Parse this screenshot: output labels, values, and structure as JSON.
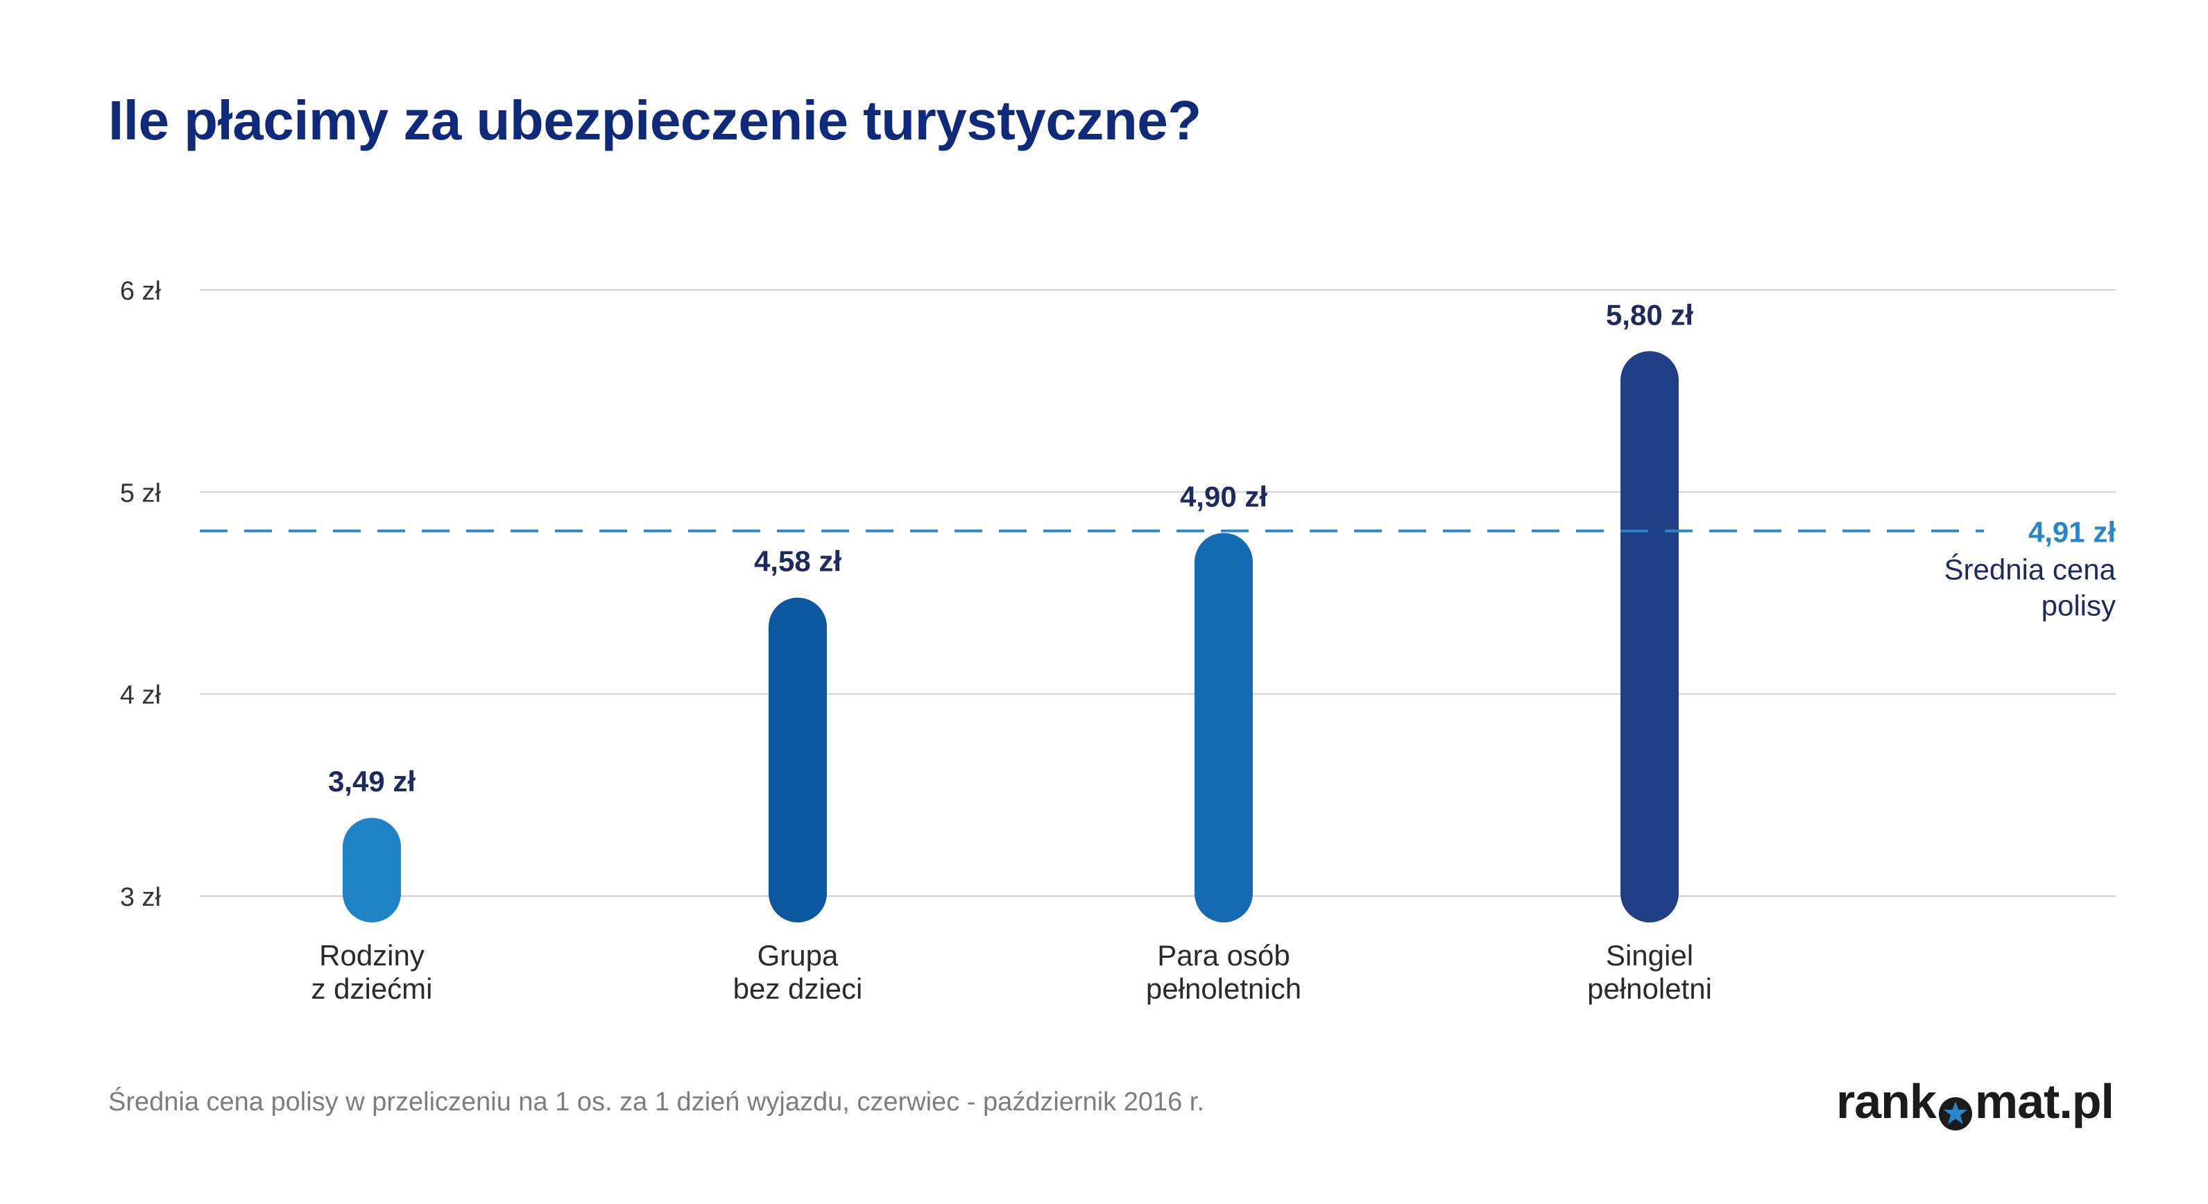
{
  "title": "Ile płacimy za ubezpieczenie turystyczne?",
  "footnote": "Średnia cena polisy w przeliczeniu na 1 os. za 1 dzień wyjazdu, czerwiec - październik 2016 r.",
  "logo": {
    "left": "rank",
    "right": "mat.pl",
    "icon": "star-circle-icon"
  },
  "chart_data": {
    "type": "bar",
    "title": "Ile płacimy za ubezpieczenie turystyczne?",
    "categories": [
      [
        "Rodziny",
        "z dziećmi"
      ],
      [
        "Grupa",
        "bez dzieci"
      ],
      [
        "Para osób",
        "pełnoletnich"
      ],
      [
        "Singiel",
        "pełnoletni"
      ]
    ],
    "values": [
      3.49,
      4.58,
      4.9,
      5.8
    ],
    "value_labels": [
      "3,49 zł",
      "4,58 zł",
      "4,90 zł",
      "5,80 zł"
    ],
    "bar_colors": [
      "#1e82c4",
      "#0b57a0",
      "#156bb3",
      "#213f86"
    ],
    "ylim": [
      3,
      6
    ],
    "yticks": [
      3,
      4,
      5,
      6
    ],
    "ytick_labels": [
      "3 zł",
      "4 zł",
      "5 zł",
      "6 zł"
    ],
    "grid": true,
    "reference_line": {
      "value": 4.91,
      "label": "4,91 zł",
      "caption": [
        "Średnia cena",
        "polisy"
      ],
      "color": "#2a86c8",
      "style": "dashed"
    }
  }
}
